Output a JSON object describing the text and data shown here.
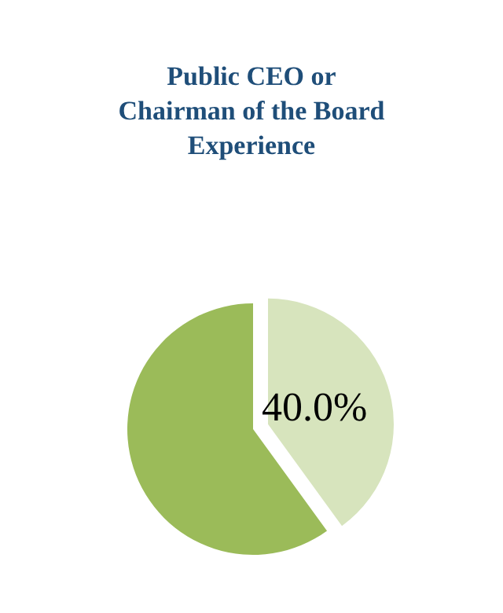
{
  "chart_data": {
    "type": "pie",
    "title": "Public CEO or Chairman of the Board Experience",
    "categories": [
      null,
      null
    ],
    "values": [
      40,
      60
    ],
    "colors": [
      "#d7e4bd",
      "#9bbb59"
    ],
    "value_labels": [
      "40.0%",
      null
    ]
  }
}
